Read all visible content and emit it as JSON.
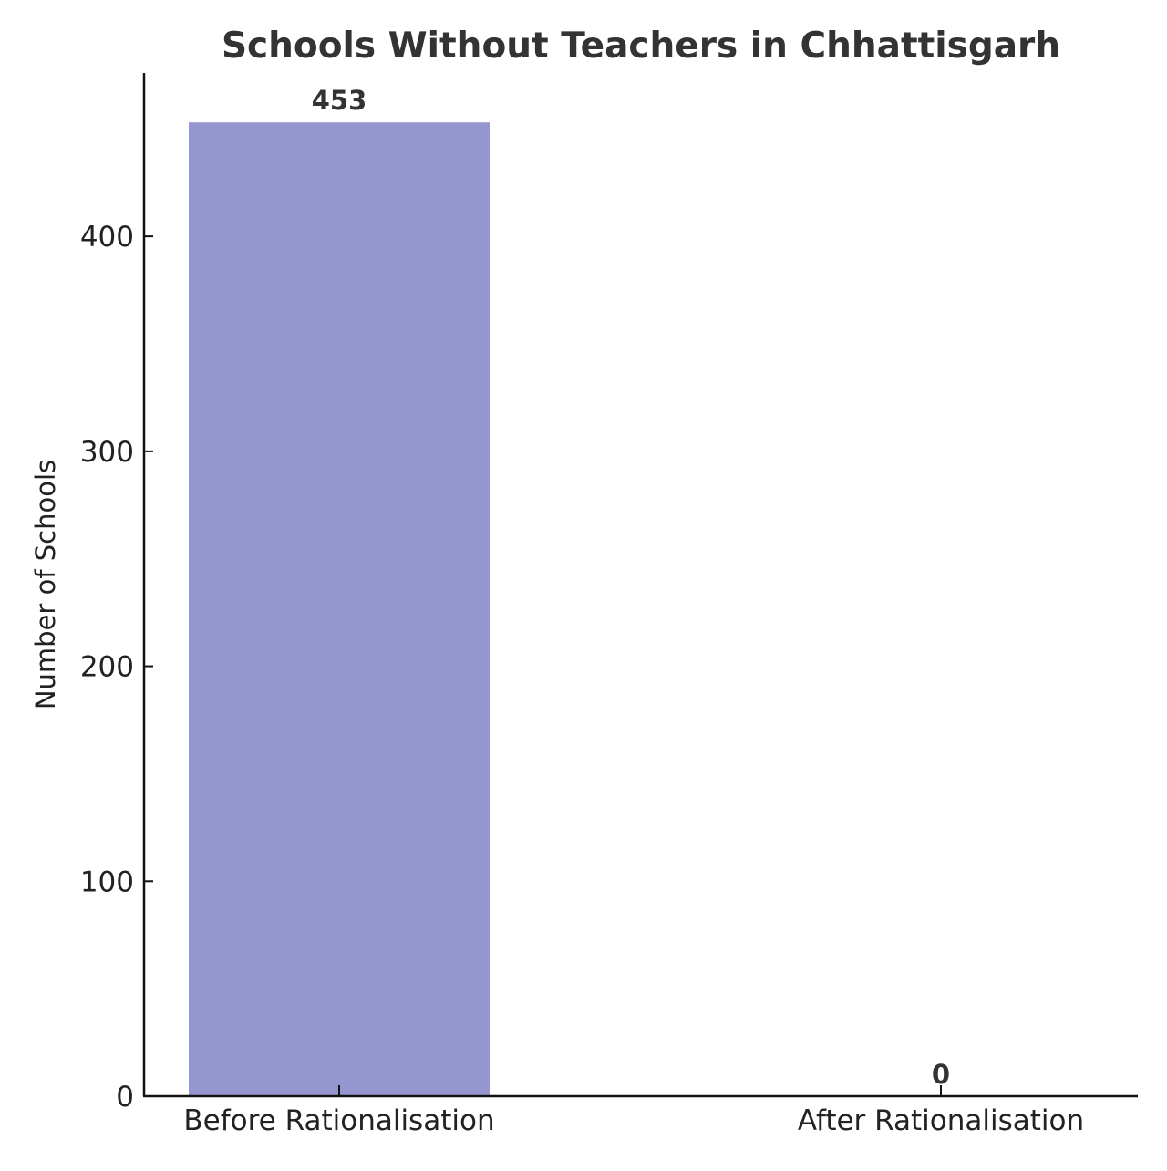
{
  "chart_data": {
    "type": "bar",
    "title": "Schools Without Teachers in Chhattisgarh",
    "xlabel": "",
    "ylabel": "Number of Schools",
    "categories": [
      "Before Rationalisation",
      "After Rationalisation"
    ],
    "values": [
      453,
      0
    ],
    "data_labels": [
      "453",
      "0"
    ],
    "ylim": [
      0,
      476
    ],
    "yticks": [
      0,
      100,
      200,
      300,
      400
    ],
    "ytick_labels": [
      "0",
      "100",
      "200",
      "300",
      "400"
    ],
    "grid": false,
    "legend": "none",
    "bar_color": "#9595d0",
    "text_color": "#333333"
  }
}
